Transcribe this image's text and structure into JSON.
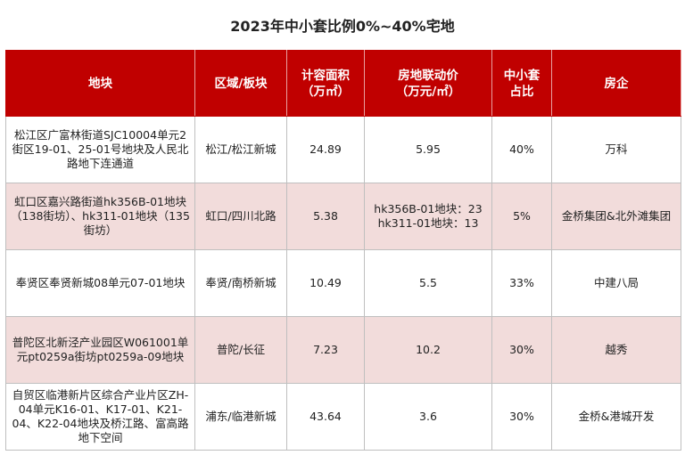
{
  "title": "2023年中小套比例0%~40%宅地",
  "colors": {
    "header_bg": "#c00000",
    "header_text": "#ffffff",
    "stripe_bg": "#f2dcdb",
    "border": "#bfbfbf"
  },
  "columns": [
    "地块",
    "区域/板块",
    "计容面积\n（万㎡）",
    "房地联动价\n（万元/㎡）",
    "中小套\n占比",
    "房企"
  ],
  "rows": [
    {
      "parcel": "松江区广富林街道SJC10004单元2街区19-01、25-01号地块及人民北路地下连通道",
      "area_block": "松江/松江新城",
      "floor_area": "24.89",
      "price": "5.95",
      "small_ratio": "40%",
      "developer": "万科"
    },
    {
      "parcel": "虹口区嘉兴路街道hk356B-01地块（138街坊）、hk311-01地块（135街坊）",
      "area_block": "虹口/四川北路",
      "floor_area": "5.38",
      "price": "hk356B-01地块：23\nhk311-01地块：13",
      "small_ratio": "5%",
      "developer": "金桥集团&北外滩集团"
    },
    {
      "parcel": "奉贤区奉贤新城08单元07-01地块",
      "area_block": "奉贤/南桥新城",
      "floor_area": "10.49",
      "price": "5.5",
      "small_ratio": "33%",
      "developer": "中建八局"
    },
    {
      "parcel": "普陀区北新泾产业园区W061001单元pt0259a街坊pt0259a-09地块",
      "area_block": "普陀/长征",
      "floor_area": "7.23",
      "price": "10.2",
      "small_ratio": "30%",
      "developer": "越秀"
    },
    {
      "parcel": "自贸区临港新片区综合产业片区ZH-04单元K16-01、K17-01、K21-04、K22-04地块及桥江路、富高路地下空间",
      "area_block": "浦东/临港新城",
      "floor_area": "43.64",
      "price": "3.6",
      "small_ratio": "30%",
      "developer": "金桥&港城开发"
    }
  ]
}
